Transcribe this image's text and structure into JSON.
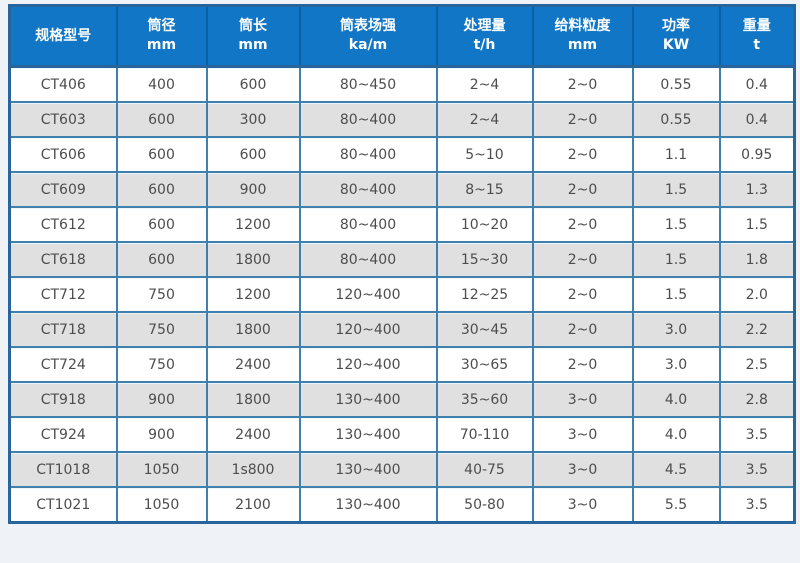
{
  "page": {
    "background": "#eff3f7"
  },
  "colors": {
    "header_bg": "#1176c6",
    "header_text": "#ffffff",
    "header_divider": "#0b5fa4",
    "outer_border": "#27659c",
    "cell_border": "#4080ad",
    "row_bg": "#ffffff",
    "row_alt_bg": "#e0e0e0",
    "body_text": "#4d4d4d"
  },
  "table": {
    "columns": [
      {
        "id": "model",
        "line1": "规格型号",
        "line2": ""
      },
      {
        "id": "diameter",
        "line1": "筒径",
        "line2": "mm"
      },
      {
        "id": "length",
        "line1": "筒长",
        "line2": "mm"
      },
      {
        "id": "field",
        "line1": "筒表场强",
        "line2": "ka/m"
      },
      {
        "id": "capacity",
        "line1": "处理量",
        "line2": "t/h"
      },
      {
        "id": "feed-size",
        "line1": "给料粒度",
        "line2": "mm"
      },
      {
        "id": "power",
        "line1": "功率",
        "line2": "KW"
      },
      {
        "id": "weight",
        "line1": "重量",
        "line2": "t"
      }
    ],
    "rows": [
      [
        "CT406",
        "400",
        "600",
        "80~450",
        "2~4",
        "2~0",
        "0.55",
        "0.4"
      ],
      [
        "CT603",
        "600",
        "300",
        "80~400",
        "2~4",
        "2~0",
        "0.55",
        "0.4"
      ],
      [
        "CT606",
        "600",
        "600",
        "80~400",
        "5~10",
        "2~0",
        "1.1",
        "0.95"
      ],
      [
        "CT609",
        "600",
        "900",
        "80~400",
        "8~15",
        "2~0",
        "1.5",
        "1.3"
      ],
      [
        "CT612",
        "600",
        "1200",
        "80~400",
        "10~20",
        "2~0",
        "1.5",
        "1.5"
      ],
      [
        "CT618",
        "600",
        "1800",
        "80~400",
        "15~30",
        "2~0",
        "1.5",
        "1.8"
      ],
      [
        "CT712",
        "750",
        "1200",
        "120~400",
        "12~25",
        "2~0",
        "1.5",
        "2.0"
      ],
      [
        "CT718",
        "750",
        "1800",
        "120~400",
        "30~45",
        "2~0",
        "3.0",
        "2.2"
      ],
      [
        "CT724",
        "750",
        "2400",
        "120~400",
        "30~65",
        "2~0",
        "3.0",
        "2.5"
      ],
      [
        "CT918",
        "900",
        "1800",
        "130~400",
        "35~60",
        "3~0",
        "4.0",
        "2.8"
      ],
      [
        "CT924",
        "900",
        "2400",
        "130~400",
        "70-110",
        "3~0",
        "4.0",
        "3.5"
      ],
      [
        "CT1018",
        "1050",
        "1s800",
        "130~400",
        "40-75",
        "3~0",
        "4.5",
        "3.5"
      ],
      [
        "CT1021",
        "1050",
        "2100",
        "130~400",
        "50-80",
        "3~0",
        "5.5",
        "3.5"
      ]
    ]
  }
}
